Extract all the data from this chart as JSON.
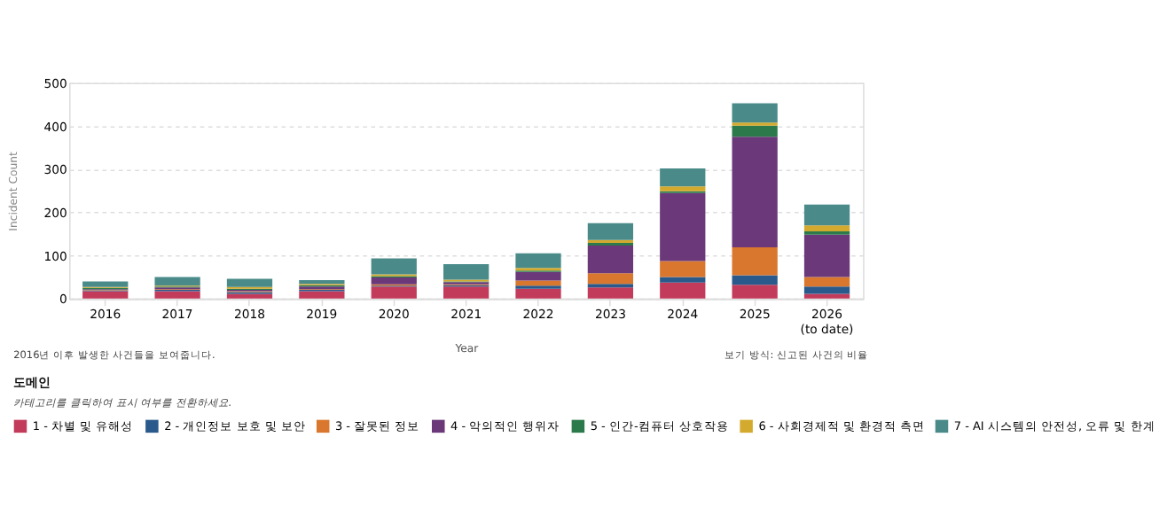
{
  "chart_data": {
    "type": "bar",
    "stacked": true,
    "xlabel": "Year",
    "ylabel": "Incident Count",
    "legend_title": "도메인",
    "categories": [
      "2016",
      "2017",
      "2018",
      "2019",
      "2020",
      "2021",
      "2022",
      "2023",
      "2024",
      "2025",
      "2026\n(to date)"
    ],
    "ylim": [
      0,
      500
    ],
    "yticks": [
      0,
      100,
      200,
      300,
      400,
      500
    ],
    "grid": "y",
    "legend": "bottom",
    "series": [
      {
        "name": "1 - 차별 및 유해성",
        "color": "#c23b5b",
        "values": [
          17,
          17,
          11,
          17,
          28,
          28,
          23,
          26,
          37,
          32,
          11
        ]
      },
      {
        "name": "2 - 개인정보 보호 및 보안",
        "color": "#2a5a8c",
        "values": [
          2,
          3,
          4,
          3,
          2,
          3,
          7,
          8,
          13,
          22,
          17
        ]
      },
      {
        "name": "3 - 잘못된 정보",
        "color": "#d9772e",
        "values": [
          1,
          2,
          2,
          2,
          3,
          2,
          12,
          25,
          37,
          65,
          22
        ]
      },
      {
        "name": "4 - 악의적인 행위자",
        "color": "#6b3879",
        "values": [
          2,
          4,
          3,
          6,
          16,
          5,
          20,
          64,
          158,
          256,
          98
        ]
      },
      {
        "name": "5 - 인간-컴퓨터 상호작용",
        "color": "#2c7a4b",
        "values": [
          3,
          2,
          3,
          3,
          3,
          2,
          3,
          6,
          4,
          26,
          8
        ]
      },
      {
        "name": "6 - 사회경제적 및 환경적 측면",
        "color": "#d4aa2e",
        "values": [
          2,
          2,
          4,
          3,
          4,
          4,
          6,
          7,
          11,
          7,
          14
        ]
      },
      {
        "name": "7 - AI 시스템의 안전성, 오류 및 한계",
        "color": "#4a8b8a",
        "values": [
          13,
          20,
          19,
          9,
          37,
          36,
          34,
          39,
          42,
          45,
          48
        ]
      }
    ],
    "annotations": [
      "2016년 이후 발생한 사건들을 보여줍니다.",
      "보기 방식: 신고된 사건의 비율",
      "카테고리를 클릭하여 표시 여부를 전환하세요."
    ]
  }
}
